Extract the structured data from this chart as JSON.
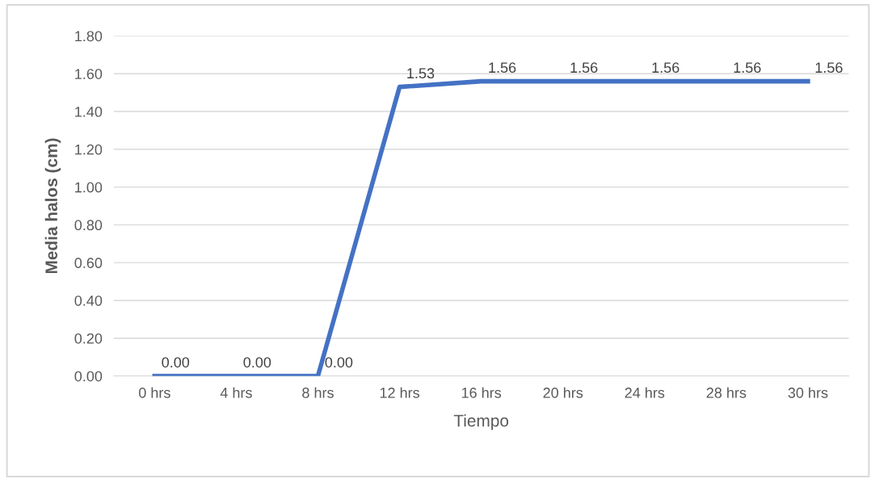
{
  "chart_data": {
    "type": "line",
    "xlabel": "Tiempo",
    "ylabel": "Media halos (cm)",
    "categories": [
      "0 hrs",
      "4 hrs",
      "8 hrs",
      "12 hrs",
      "16 hrs",
      "20 hrs",
      "24 hrs",
      "28 hrs",
      "30 hrs"
    ],
    "series": [
      {
        "color": "#4472c4",
        "values": [
          0,
          0,
          0,
          1.53,
          1.56,
          1.56,
          1.56,
          1.56,
          1.56
        ],
        "value_labels": [
          "0.00",
          "0.00",
          "0.00",
          "1.53",
          "1.56",
          "1.56",
          "1.56",
          "1.56",
          "1.56"
        ]
      }
    ],
    "ylim": [
      0,
      1.8
    ],
    "yticks": [
      {
        "value": 0,
        "label": "0.00"
      },
      {
        "value": 0.2,
        "label": "0.20"
      },
      {
        "value": 0.4,
        "label": "0.40"
      },
      {
        "value": 0.6,
        "label": "0.60"
      },
      {
        "value": 0.8,
        "label": "0.80"
      },
      {
        "value": 1.0,
        "label": "1.00"
      },
      {
        "value": 1.2,
        "label": "1.20"
      },
      {
        "value": 1.4,
        "label": "1.40"
      },
      {
        "value": 1.6,
        "label": "1.60"
      },
      {
        "value": 1.8,
        "label": "1.80"
      }
    ],
    "grid": "y",
    "marker": "none",
    "line_style": "solid"
  }
}
